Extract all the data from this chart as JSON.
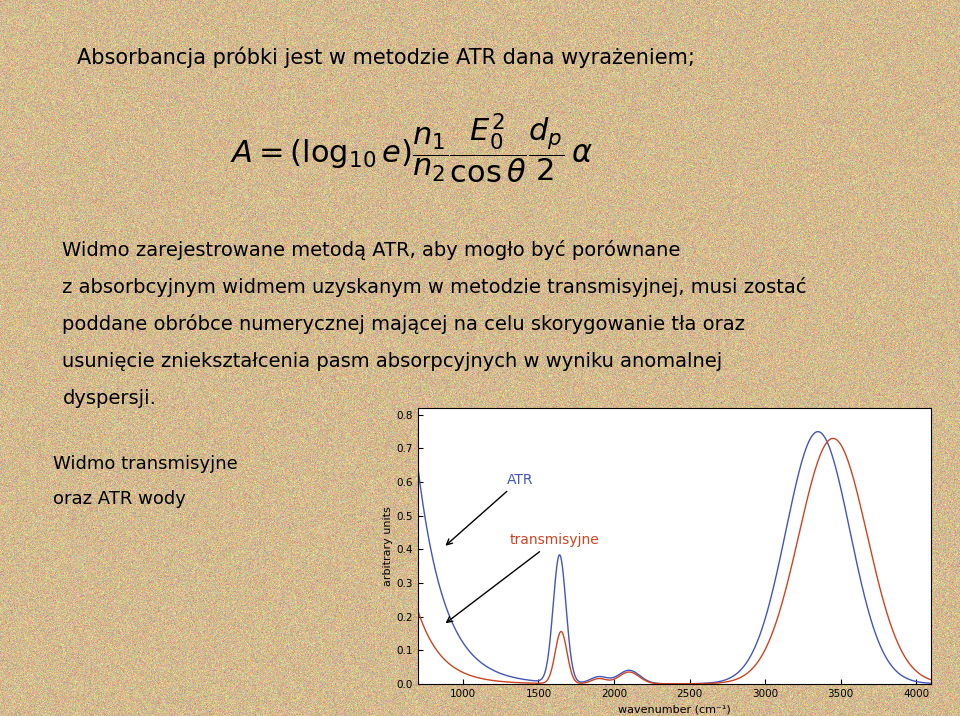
{
  "bg_color": "#d4bb90",
  "bg_color2": "#c8ad82",
  "title_text": "Absorbancja próbki jest w metodzie ATR dana wyrażeniem;",
  "body_text_lines": [
    "Widmo zarejestrowane metodą ATR, aby mogło być porównane",
    "z absorbcyjnym widmem uzyskanym w metodzie transmisyjnej, musi zostać",
    "poddane obróbce numerycznej mającej na celu skorygowanie tła oraz",
    "usunięcie zniekształcenia pasm absorpcyjnych w wyniku anomalnej",
    "dyspersji."
  ],
  "label_left_line1": "Widmo transmisyjne",
  "label_left_line2": "oraz ATR wody",
  "atr_label": "ATR",
  "trans_label": "transmisyjne",
  "atr_color": "#4455bb",
  "trans_color": "#cc4422",
  "xlabel": "wavenumber (cm⁻¹)",
  "ylabel": "arbitrary units",
  "xlim": [
    700,
    4100
  ],
  "ylim": [
    0.0,
    0.82
  ],
  "yticks": [
    0.0,
    0.1,
    0.2,
    0.3,
    0.4,
    0.5,
    0.6,
    0.7,
    0.8
  ],
  "xticks": [
    1000,
    1500,
    2000,
    2500,
    3000,
    3500,
    4000
  ],
  "title_fontsize": 15,
  "body_fontsize": 14,
  "formula_fontsize": 22
}
